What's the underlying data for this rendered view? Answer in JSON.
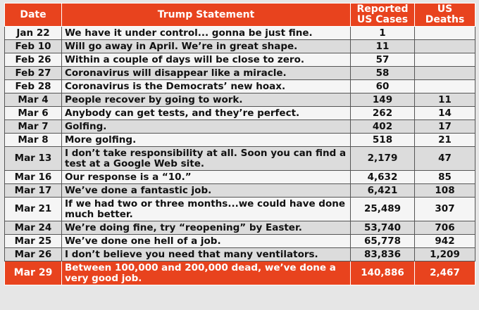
{
  "table": {
    "headers": {
      "date": "Date",
      "statement": "Trump Statement",
      "cases": "Reported US Cases",
      "deaths": "US Deaths"
    },
    "rows": [
      {
        "date": "Jan 22",
        "statement": "We have it under control... gonna be just fine.",
        "cases": "1",
        "deaths": ""
      },
      {
        "date": "Feb 10",
        "statement": "Will go away in April. We’re in great shape.",
        "cases": "11",
        "deaths": ""
      },
      {
        "date": "Feb 26",
        "statement": "Within a couple of days will be close to zero.",
        "cases": "57",
        "deaths": ""
      },
      {
        "date": "Feb 27",
        "statement": "Coronavirus will disappear like a miracle.",
        "cases": "58",
        "deaths": ""
      },
      {
        "date": "Feb 28",
        "statement": "Coronavirus is the Democrats’ new hoax.",
        "cases": "60",
        "deaths": ""
      },
      {
        "date": "Mar 4",
        "statement": "People recover by going to work.",
        "cases": "149",
        "deaths": "11"
      },
      {
        "date": "Mar 6",
        "statement": "Anybody can get tests, and they’re perfect.",
        "cases": "262",
        "deaths": "14"
      },
      {
        "date": "Mar 7",
        "statement": "Golfing.",
        "cases": "402",
        "deaths": "17"
      },
      {
        "date": "Mar 8",
        "statement": "More golfing.",
        "cases": "518",
        "deaths": "21"
      },
      {
        "date": "Mar 13",
        "statement": "I don’t take responsibility at all. Soon you can find a test at a Google Web site.",
        "cases": "2,179",
        "deaths": "47"
      },
      {
        "date": "Mar 16",
        "statement": "Our response is a “10.”",
        "cases": "4,632",
        "deaths": "85"
      },
      {
        "date": "Mar 17",
        "statement": "We’ve done a fantastic job.",
        "cases": "6,421",
        "deaths": "108"
      },
      {
        "date": "Mar 21",
        "statement": "If we had two or three months...we could have done much better.",
        "cases": "25,489",
        "deaths": "307"
      },
      {
        "date": "Mar 24",
        "statement": "We’re doing fine, try “reopening” by Easter.",
        "cases": "53,740",
        "deaths": "706"
      },
      {
        "date": "Mar 25",
        "statement": "We’ve done one hell of a job.",
        "cases": "65,778",
        "deaths": "942"
      },
      {
        "date": "Mar 26",
        "statement": "I don’t believe you need that many ventilators.",
        "cases": "83,836",
        "deaths": "1,209"
      },
      {
        "date": "Mar 29",
        "statement": "Between 100,000 and 200,000 dead, we’ve done a very good job.",
        "cases": "140,886",
        "deaths": "2,467"
      }
    ]
  },
  "colors": {
    "header_bg": "#e8431e",
    "row_light": "#f5f5f5",
    "row_dark": "#dcdcdc",
    "border": "#555555"
  }
}
